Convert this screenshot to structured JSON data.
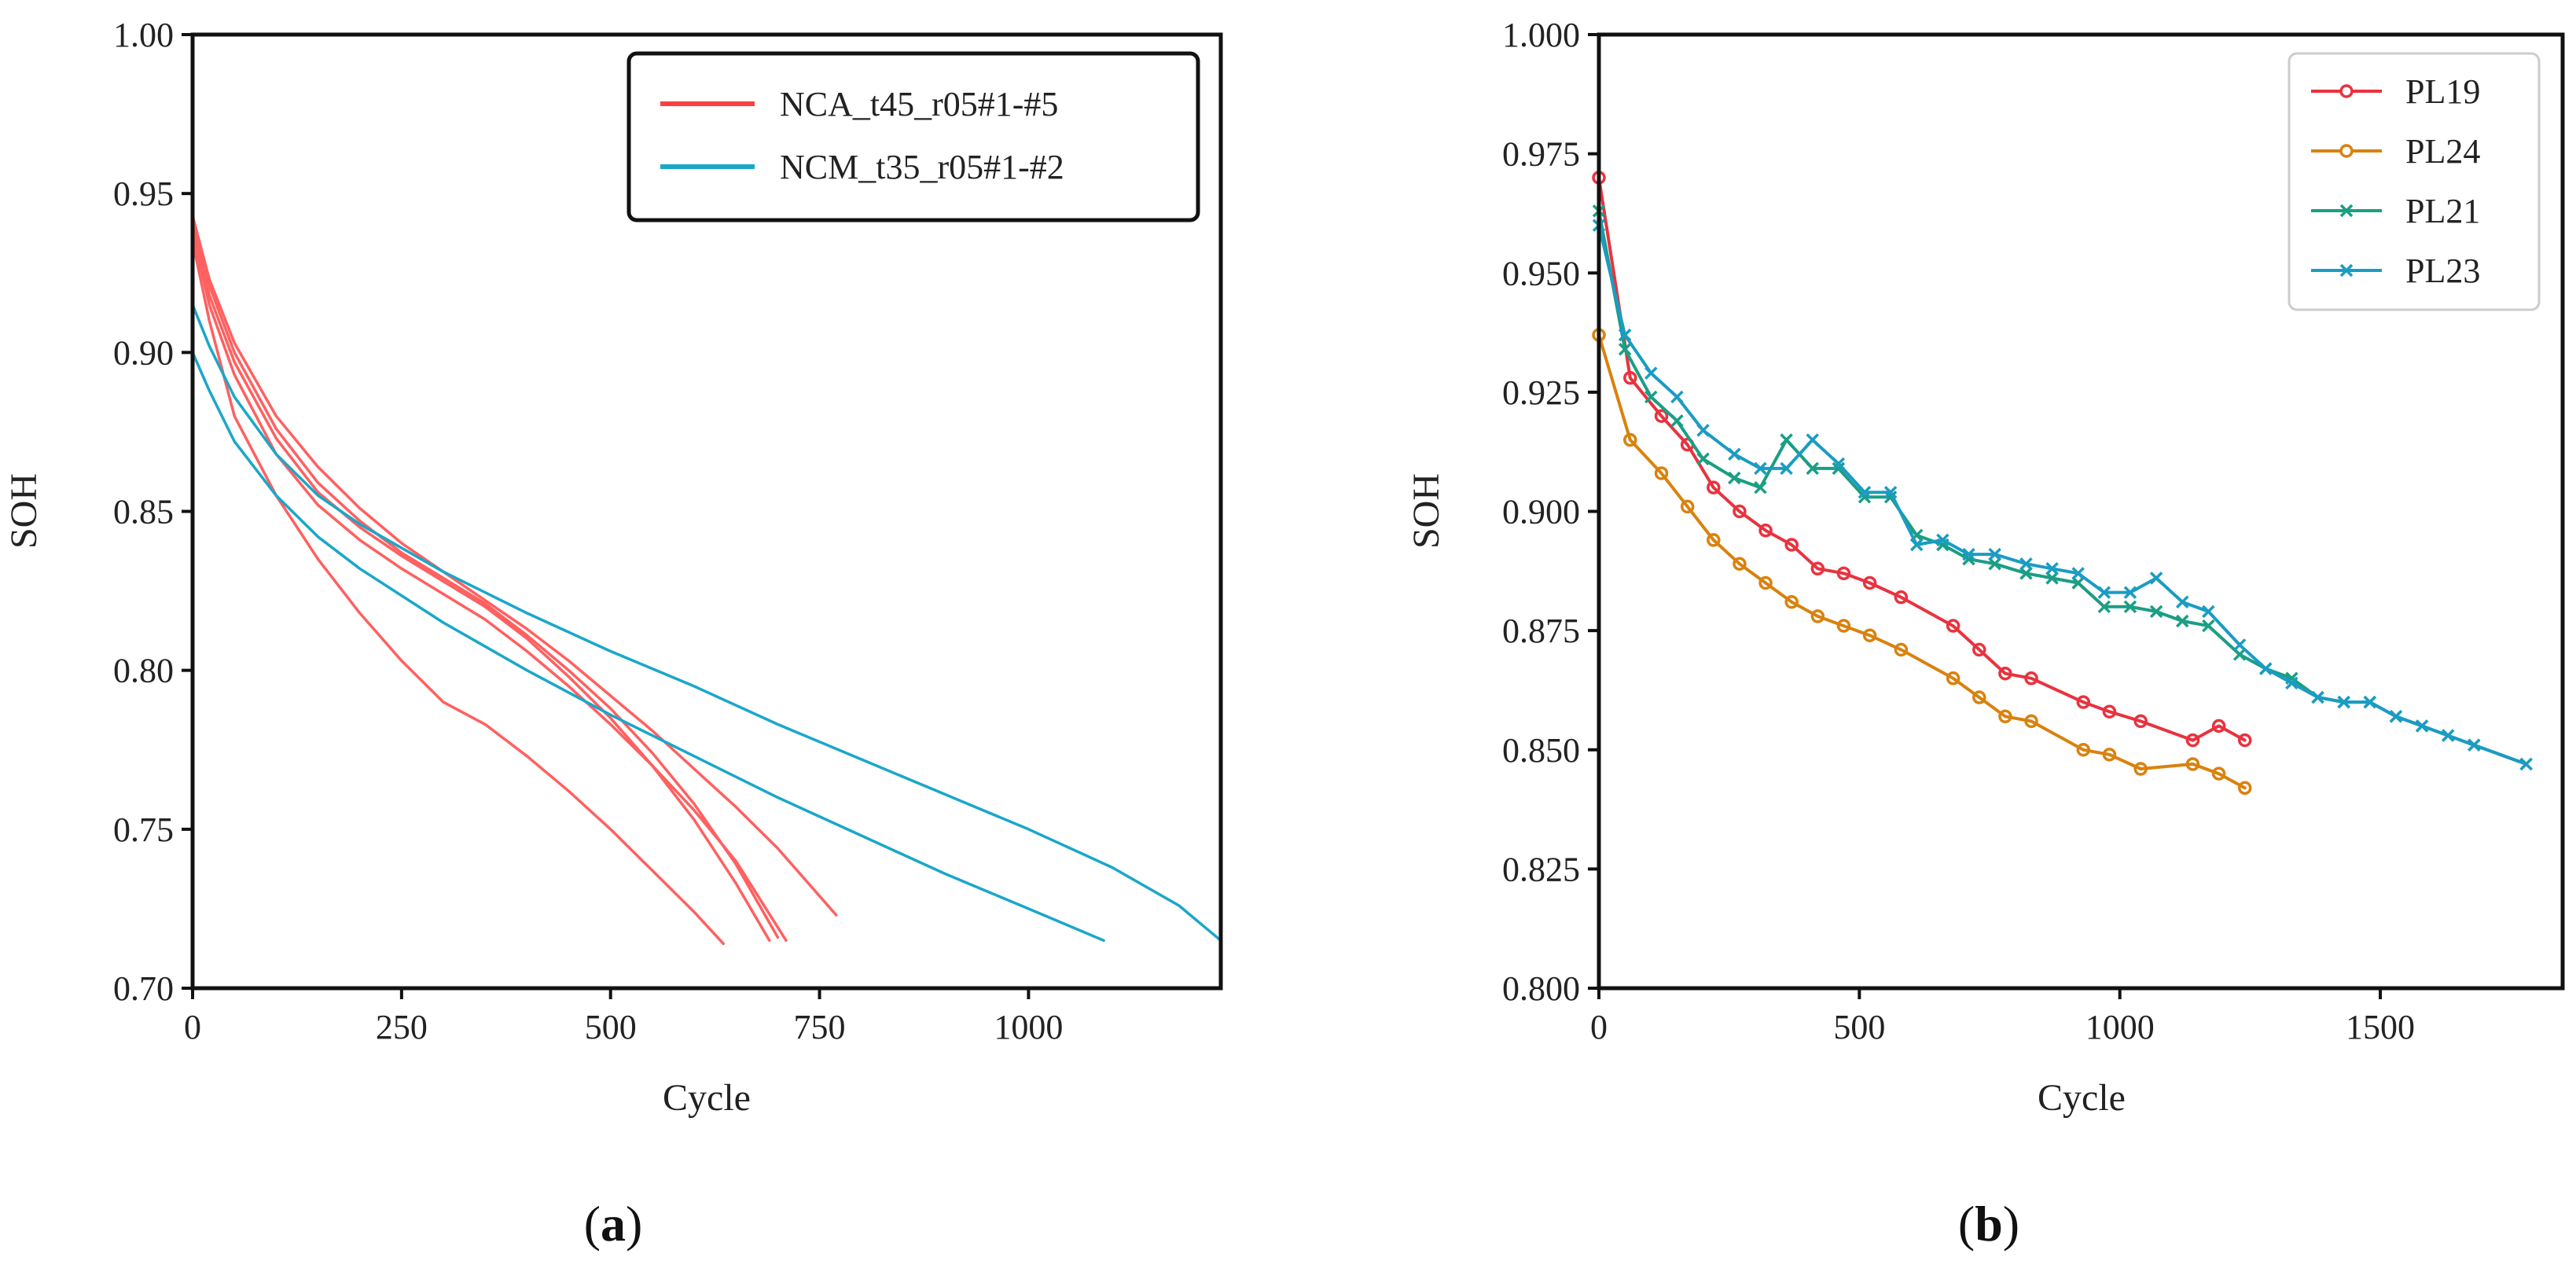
{
  "chart_data": [
    {
      "type": "line",
      "panel_caption": "(a)",
      "panel_caption_open": "(",
      "panel_caption_letter": "a",
      "panel_caption_close": ")",
      "xlabel": "Cycle",
      "ylabel": "SOH",
      "xlim": [
        0,
        1230
      ],
      "ylim": [
        0.7,
        1.0
      ],
      "x_ticks": [
        0,
        250,
        500,
        750,
        1000
      ],
      "x_tick_labels": [
        "0",
        "250",
        "500",
        "750",
        "1000"
      ],
      "y_ticks": [
        0.7,
        0.75,
        0.8,
        0.85,
        0.9,
        0.95,
        1.0
      ],
      "y_tick_labels": [
        "0.70",
        "0.75",
        "0.80",
        "0.85",
        "0.90",
        "0.95",
        "1.00"
      ],
      "legend_position": "top-right",
      "legend": [
        {
          "label": "NCA_t45_r05#1-#5",
          "color": "#ff4040"
        },
        {
          "label": "NCM_t35_r05#1-#2",
          "color": "#1aa7c9"
        }
      ],
      "series": [
        {
          "name": "NCA_t45_r05#1",
          "group": "NCA_t45_r05#1-#5",
          "color": "#ff6060",
          "x": [
            0,
            20,
            50,
            100,
            150,
            200,
            250,
            300,
            350,
            400,
            450,
            500,
            550,
            600,
            635
          ],
          "y": [
            0.935,
            0.91,
            0.88,
            0.855,
            0.835,
            0.818,
            0.803,
            0.79,
            0.783,
            0.773,
            0.762,
            0.75,
            0.737,
            0.724,
            0.714
          ]
        },
        {
          "name": "NCA_t45_r05#2",
          "group": "NCA_t45_r05#1-#5",
          "color": "#ff6060",
          "x": [
            0,
            20,
            50,
            100,
            150,
            200,
            250,
            300,
            350,
            400,
            450,
            500,
            550,
            600,
            650,
            690
          ],
          "y": [
            0.94,
            0.918,
            0.897,
            0.873,
            0.856,
            0.845,
            0.836,
            0.828,
            0.82,
            0.81,
            0.798,
            0.785,
            0.77,
            0.753,
            0.733,
            0.715
          ]
        },
        {
          "name": "NCA_t45_r05#3",
          "group": "NCA_t45_r05#1-#5",
          "color": "#ff6060",
          "x": [
            0,
            20,
            50,
            100,
            150,
            200,
            250,
            300,
            350,
            400,
            450,
            500,
            550,
            600,
            650,
            700
          ],
          "y": [
            0.942,
            0.921,
            0.9,
            0.876,
            0.859,
            0.847,
            0.837,
            0.829,
            0.821,
            0.811,
            0.8,
            0.788,
            0.774,
            0.758,
            0.739,
            0.716
          ]
        },
        {
          "name": "NCA_t45_r05#4",
          "group": "NCA_t45_r05#1-#5",
          "color": "#ff6060",
          "x": [
            0,
            20,
            50,
            100,
            150,
            200,
            250,
            300,
            350,
            400,
            450,
            500,
            550,
            600,
            650,
            710
          ],
          "y": [
            0.938,
            0.915,
            0.893,
            0.868,
            0.852,
            0.841,
            0.832,
            0.824,
            0.816,
            0.806,
            0.795,
            0.783,
            0.77,
            0.756,
            0.74,
            0.715
          ]
        },
        {
          "name": "NCA_t45_r05#5",
          "group": "NCA_t45_r05#1-#5",
          "color": "#ff6060",
          "x": [
            0,
            20,
            50,
            100,
            150,
            200,
            250,
            300,
            350,
            400,
            450,
            500,
            550,
            600,
            650,
            700,
            770
          ],
          "y": [
            0.943,
            0.923,
            0.903,
            0.88,
            0.864,
            0.851,
            0.84,
            0.831,
            0.822,
            0.813,
            0.803,
            0.792,
            0.781,
            0.769,
            0.757,
            0.744,
            0.723
          ]
        },
        {
          "name": "NCM_t35_r05#1",
          "group": "NCM_t35_r05#1-#2",
          "color": "#1aa7c9",
          "x": [
            0,
            20,
            50,
            100,
            150,
            200,
            300,
            400,
            500,
            600,
            700,
            800,
            900,
            1000,
            1090
          ],
          "y": [
            0.9,
            0.888,
            0.872,
            0.855,
            0.842,
            0.832,
            0.815,
            0.8,
            0.786,
            0.773,
            0.76,
            0.748,
            0.736,
            0.725,
            0.715
          ]
        },
        {
          "name": "NCM_t35_r05#2",
          "group": "NCM_t35_r05#1-#2",
          "color": "#1aa7c9",
          "x": [
            0,
            20,
            50,
            100,
            150,
            200,
            300,
            400,
            500,
            600,
            700,
            800,
            900,
            1000,
            1100,
            1180,
            1230
          ],
          "y": [
            0.915,
            0.902,
            0.886,
            0.868,
            0.855,
            0.846,
            0.831,
            0.818,
            0.806,
            0.795,
            0.783,
            0.772,
            0.761,
            0.75,
            0.738,
            0.726,
            0.715
          ]
        }
      ]
    },
    {
      "type": "line",
      "panel_caption": "(b)",
      "panel_caption_open": "(",
      "panel_caption_letter": "b",
      "panel_caption_close": ")",
      "xlabel": "Cycle",
      "ylabel": "SOH",
      "xlim": [
        0,
        1850
      ],
      "ylim": [
        0.8,
        1.0
      ],
      "x_ticks": [
        0,
        500,
        1000,
        1500
      ],
      "x_tick_labels": [
        "0",
        "500",
        "1000",
        "1500"
      ],
      "y_ticks": [
        0.8,
        0.825,
        0.85,
        0.875,
        0.9,
        0.925,
        0.95,
        0.975,
        1.0
      ],
      "y_tick_labels": [
        "0.800",
        "0.825",
        "0.850",
        "0.875",
        "0.900",
        "0.925",
        "0.950",
        "0.975",
        "1.000"
      ],
      "legend_position": "top-right",
      "legend": [
        {
          "label": "PL19",
          "color": "#e8333f",
          "marker": "circle"
        },
        {
          "label": "PL24",
          "color": "#d9820e",
          "marker": "circle"
        },
        {
          "label": "PL21",
          "color": "#1a9e84",
          "marker": "x"
        },
        {
          "label": "PL23",
          "color": "#1a9cc3",
          "marker": "x"
        }
      ],
      "series": [
        {
          "name": "PL19",
          "color": "#e8333f",
          "marker": "circle",
          "x": [
            0,
            60,
            120,
            170,
            220,
            270,
            320,
            370,
            420,
            470,
            520,
            580,
            680,
            730,
            780,
            830,
            930,
            980,
            1040,
            1140,
            1190,
            1240
          ],
          "y": [
            0.97,
            0.928,
            0.92,
            0.914,
            0.905,
            0.9,
            0.896,
            0.893,
            0.888,
            0.887,
            0.885,
            0.882,
            0.876,
            0.871,
            0.866,
            0.865,
            0.86,
            0.858,
            0.856,
            0.852,
            0.855,
            0.852
          ]
        },
        {
          "name": "PL24",
          "color": "#d9820e",
          "marker": "circle",
          "x": [
            0,
            60,
            120,
            170,
            220,
            270,
            320,
            370,
            420,
            470,
            520,
            580,
            680,
            730,
            780,
            830,
            930,
            980,
            1040,
            1140,
            1190,
            1240
          ],
          "y": [
            0.937,
            0.915,
            0.908,
            0.901,
            0.894,
            0.889,
            0.885,
            0.881,
            0.878,
            0.876,
            0.874,
            0.871,
            0.865,
            0.861,
            0.857,
            0.856,
            0.85,
            0.849,
            0.846,
            0.847,
            0.845,
            0.842
          ]
        },
        {
          "name": "PL21",
          "color": "#1a9e84",
          "marker": "x",
          "x": [
            0,
            50,
            100,
            150,
            200,
            260,
            310,
            360,
            410,
            460,
            510,
            560,
            610,
            660,
            710,
            760,
            820,
            870,
            920,
            970,
            1020,
            1070,
            1120,
            1170,
            1230,
            1280,
            1330,
            1380,
            1430,
            1480,
            1530,
            1580,
            1630,
            1680,
            1780
          ],
          "y": [
            0.963,
            0.934,
            0.924,
            0.919,
            0.911,
            0.907,
            0.905,
            0.915,
            0.909,
            0.909,
            0.903,
            0.903,
            0.895,
            0.893,
            0.89,
            0.889,
            0.887,
            0.886,
            0.885,
            0.88,
            0.88,
            0.879,
            0.877,
            0.876,
            0.87,
            0.867,
            0.865,
            0.861,
            0.86,
            0.86,
            0.857,
            0.855,
            0.853,
            0.851,
            0.847
          ]
        },
        {
          "name": "PL23",
          "color": "#1a9cc3",
          "marker": "x",
          "x": [
            0,
            50,
            100,
            150,
            200,
            260,
            310,
            360,
            410,
            460,
            510,
            560,
            610,
            660,
            710,
            760,
            820,
            870,
            920,
            970,
            1020,
            1070,
            1120,
            1170,
            1230,
            1280,
            1330,
            1380,
            1430,
            1480,
            1530,
            1580,
            1630,
            1680,
            1780
          ],
          "y": [
            0.96,
            0.937,
            0.929,
            0.924,
            0.917,
            0.912,
            0.909,
            0.909,
            0.915,
            0.91,
            0.904,
            0.904,
            0.893,
            0.894,
            0.891,
            0.891,
            0.889,
            0.888,
            0.887,
            0.883,
            0.883,
            0.886,
            0.881,
            0.879,
            0.872,
            0.867,
            0.864,
            0.861,
            0.86,
            0.86,
            0.857,
            0.855,
            0.853,
            0.851,
            0.847
          ]
        }
      ]
    }
  ]
}
